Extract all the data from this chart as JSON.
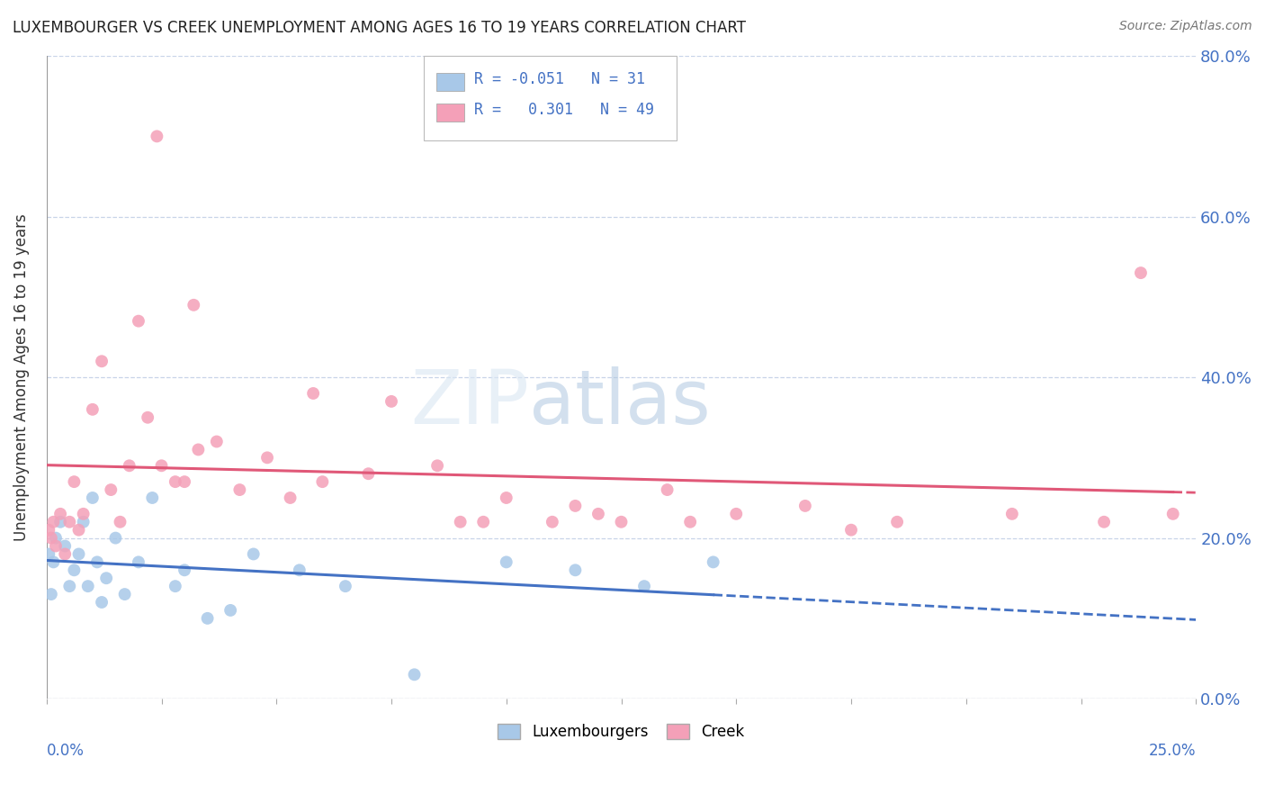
{
  "title": "LUXEMBOURGER VS CREEK UNEMPLOYMENT AMONG AGES 16 TO 19 YEARS CORRELATION CHART",
  "source": "Source: ZipAtlas.com",
  "ylabel": "Unemployment Among Ages 16 to 19 years",
  "legend_label1": "Luxembourgers",
  "legend_label2": "Creek",
  "R1": -0.051,
  "N1": 31,
  "R2": 0.301,
  "N2": 49,
  "color_blue": "#a8c8e8",
  "color_pink": "#f4a0b8",
  "color_line_blue": "#4472c4",
  "color_line_pink": "#e05878",
  "xlim": [
    0.0,
    25.0
  ],
  "ylim": [
    0.0,
    80.0
  ],
  "lux_x": [
    0.05,
    0.1,
    0.15,
    0.2,
    0.3,
    0.4,
    0.5,
    0.6,
    0.7,
    0.8,
    0.9,
    1.0,
    1.1,
    1.2,
    1.3,
    1.5,
    1.7,
    2.0,
    2.3,
    2.8,
    3.0,
    3.5,
    4.0,
    4.5,
    5.5,
    6.5,
    8.0,
    10.0,
    11.5,
    13.0,
    14.5
  ],
  "lux_y": [
    18.0,
    13.0,
    17.0,
    20.0,
    22.0,
    19.0,
    14.0,
    16.0,
    18.0,
    22.0,
    14.0,
    25.0,
    17.0,
    12.0,
    15.0,
    20.0,
    13.0,
    17.0,
    25.0,
    14.0,
    16.0,
    10.0,
    11.0,
    18.0,
    16.0,
    14.0,
    3.0,
    17.0,
    16.0,
    14.0,
    17.0
  ],
  "creek_x": [
    0.05,
    0.1,
    0.15,
    0.2,
    0.3,
    0.4,
    0.5,
    0.6,
    0.7,
    0.8,
    1.0,
    1.2,
    1.4,
    1.6,
    1.8,
    2.0,
    2.2,
    2.5,
    2.8,
    3.0,
    3.3,
    3.7,
    4.2,
    4.8,
    5.3,
    6.0,
    7.0,
    8.5,
    9.0,
    10.0,
    11.0,
    11.5,
    12.5,
    13.5,
    15.0,
    16.5,
    18.5,
    21.0,
    23.0,
    24.5,
    2.4,
    3.2,
    5.8,
    7.5,
    9.5,
    12.0,
    14.0,
    17.5,
    23.8
  ],
  "creek_y": [
    21.0,
    20.0,
    22.0,
    19.0,
    23.0,
    18.0,
    22.0,
    27.0,
    21.0,
    23.0,
    36.0,
    42.0,
    26.0,
    22.0,
    29.0,
    47.0,
    35.0,
    29.0,
    27.0,
    27.0,
    31.0,
    32.0,
    26.0,
    30.0,
    25.0,
    27.0,
    28.0,
    29.0,
    22.0,
    25.0,
    22.0,
    24.0,
    22.0,
    26.0,
    23.0,
    24.0,
    22.0,
    23.0,
    22.0,
    23.0,
    70.0,
    49.0,
    38.0,
    37.0,
    22.0,
    23.0,
    22.0,
    21.0,
    53.0
  ],
  "watermark_zip": "ZIP",
  "watermark_atlas": "atlas",
  "background_color": "#ffffff",
  "grid_color": "#c8d4e8"
}
